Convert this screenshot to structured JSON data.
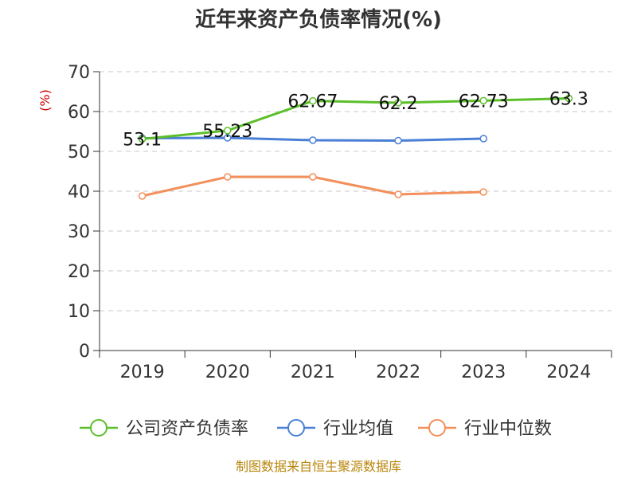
{
  "chart_data": {
    "type": "line",
    "title": "近年来资产负债率情况(%)",
    "ylabel": "(%)",
    "xlabel": "",
    "categories": [
      "2019",
      "2020",
      "2021",
      "2022",
      "2023",
      "2024"
    ],
    "ylim": [
      0,
      70
    ],
    "yticks": [
      0,
      10,
      20,
      30,
      40,
      50,
      60,
      70
    ],
    "grid": true,
    "legend_position": "bottom",
    "series": [
      {
        "name": "公司资产负债率",
        "color": "#5cbf2a",
        "values": [
          53.1,
          55.23,
          62.67,
          62.2,
          62.73,
          63.3
        ],
        "labels": [
          "53.1",
          "55.23",
          "62.67",
          "62.2",
          "62.73",
          "63.3"
        ]
      },
      {
        "name": "行业均值",
        "color": "#4a7fd6",
        "values": [
          53.3,
          53.4,
          52.8,
          52.7,
          53.2,
          null
        ]
      },
      {
        "name": "行业中位数",
        "color": "#f28f5a",
        "values": [
          38.8,
          43.6,
          43.6,
          39.2,
          39.8,
          null
        ]
      }
    ]
  },
  "source_text": "制图数据来自恒生聚源数据库"
}
